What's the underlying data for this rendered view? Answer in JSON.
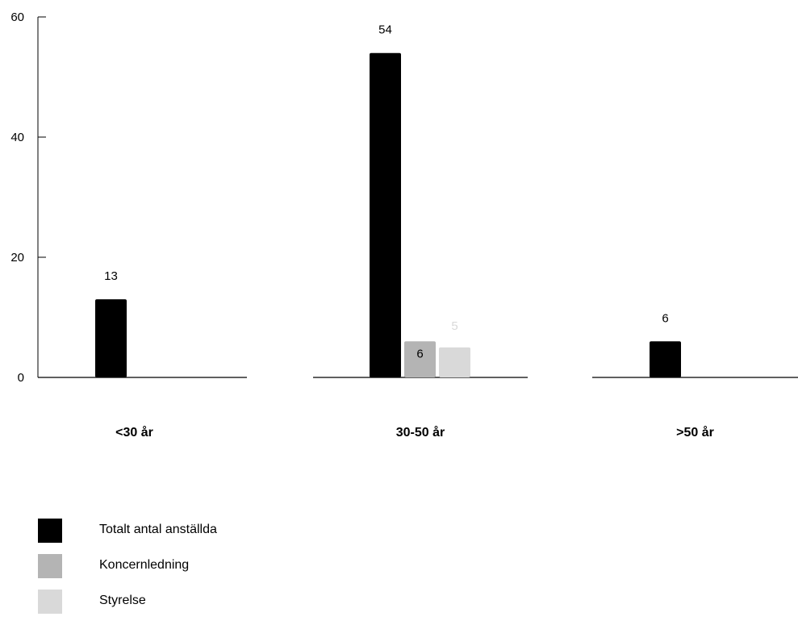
{
  "chart_data": {
    "type": "bar",
    "categories": [
      "<30 år",
      "30-50 år",
      ">50 år"
    ],
    "series": [
      {
        "name": "Totalt antal anställda",
        "color": "#000000",
        "values": [
          13,
          54,
          6
        ]
      },
      {
        "name": "Koncernledning",
        "color": "#b4b4b4",
        "values": [
          null,
          6,
          null
        ]
      },
      {
        "name": "Styrelse",
        "color": "#d9d9d9",
        "values": [
          null,
          5,
          null
        ]
      }
    ],
    "y_ticks": [
      "0",
      "20",
      "40",
      "60"
    ],
    "ylim": [
      0,
      60
    ],
    "title": "",
    "xlabel": "",
    "ylabel": "",
    "grid": false,
    "legend_placement": "bottom-left"
  }
}
